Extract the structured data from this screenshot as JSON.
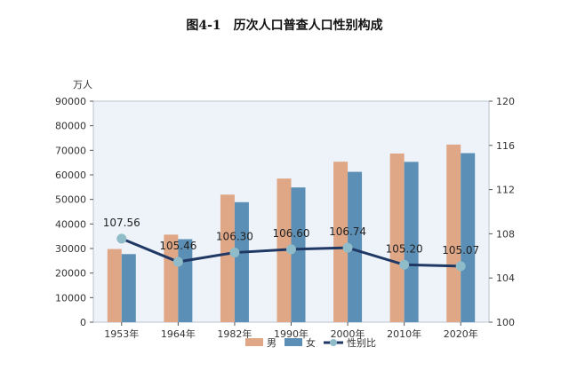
{
  "chart_data": {
    "type": "bar",
    "title": "图4-1　历次人口普查人口性别构成",
    "ylabel_left_unit": "万人",
    "categories": [
      "1953年",
      "1964年",
      "1982年",
      "1990年",
      "2000年",
      "2010年",
      "2020年"
    ],
    "series": [
      {
        "name": "男",
        "kind": "bar",
        "axis": "left",
        "color": "#E0A787",
        "values": [
          29799,
          35652,
          51944,
          58495,
          65355,
          68685,
          72334
        ]
      },
      {
        "name": "女",
        "kind": "bar",
        "axis": "left",
        "color": "#5B8FB5",
        "values": [
          27728,
          33806,
          48874,
          54873,
          61228,
          65287,
          68844
        ]
      },
      {
        "name": "性别比",
        "kind": "line",
        "axis": "right",
        "color": "#1F3864",
        "marker_color": "#8FBCC8",
        "values": [
          107.56,
          105.46,
          106.3,
          106.6,
          106.74,
          105.2,
          105.07
        ],
        "labels": [
          "107.56",
          "105.46",
          "106.30",
          "106.60",
          "106.74",
          "105.20",
          "105.07"
        ]
      }
    ],
    "y_left": {
      "min": 0,
      "max": 90000,
      "ticks": [
        "0",
        "10000",
        "20000",
        "30000",
        "40000",
        "50000",
        "60000",
        "70000",
        "80000",
        "90000"
      ]
    },
    "y_right": {
      "min": 100,
      "max": 120,
      "ticks": [
        "100",
        "104",
        "108",
        "112",
        "116",
        "120"
      ]
    },
    "plot_background": "#EEF3FA",
    "grid": false,
    "legend_position": "bottom"
  }
}
